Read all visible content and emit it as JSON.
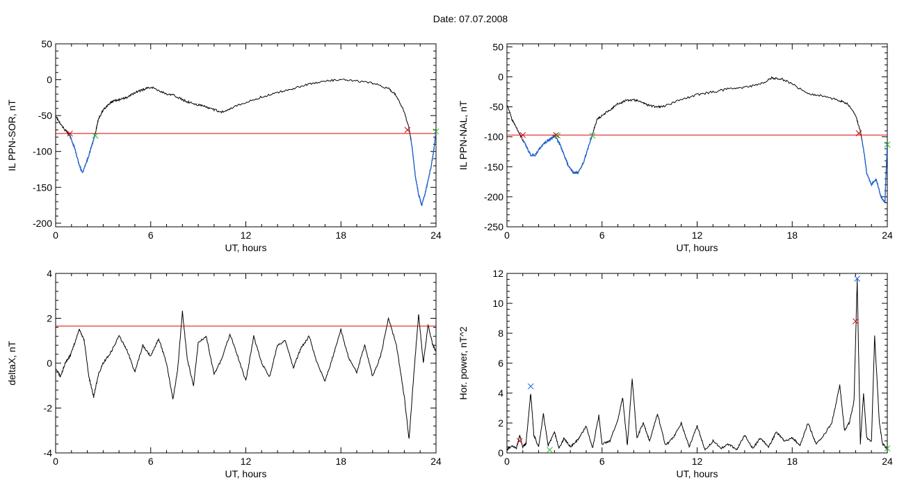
{
  "figure": {
    "title": "Date:  07.07.2008"
  },
  "colors": {
    "axes": "#000000",
    "trace": "#000000",
    "highlight": "#1a5fd0",
    "threshold": "#e00000",
    "marker_red": "#cc0000",
    "marker_green": "#20b020",
    "marker_blue": "#2060e0"
  },
  "chart_data": [
    {
      "id": "p1",
      "type": "line",
      "title": "",
      "xlabel": "UT, hours",
      "ylabel": "IL PPN-SOR, nT",
      "xlim": [
        0,
        24
      ],
      "ylim": [
        -205,
        50
      ],
      "xticks": [
        0,
        6,
        12,
        18,
        24
      ],
      "yticks": [
        -200,
        -150,
        -100,
        -50,
        0,
        50
      ],
      "grid": false,
      "threshold": -75,
      "series": [
        {
          "x": [
            0,
            0.3,
            0.6,
            0.9,
            1.2,
            1.5,
            1.7,
            2.0,
            2.3,
            2.5,
            2.7,
            3.0,
            3.3,
            3.6,
            4.0,
            4.5,
            5.0,
            5.5,
            6.0,
            6.5,
            7.0,
            7.5,
            8.0,
            8.5,
            9.0,
            9.5,
            10.0,
            10.5,
            11.0,
            12.0,
            13.0,
            14.0,
            15.0,
            16.0,
            17.0,
            18.0,
            19.0,
            20.0,
            21.0,
            21.5,
            22.0,
            22.3,
            22.5,
            22.7,
            22.9,
            23.1,
            23.3,
            23.5,
            23.7,
            23.85,
            24.0
          ],
          "y": [
            -50,
            -62,
            -70,
            -78,
            -95,
            -120,
            -130,
            -112,
            -90,
            -75,
            -55,
            -42,
            -35,
            -30,
            -28,
            -25,
            -18,
            -14,
            -10,
            -15,
            -20,
            -22,
            -28,
            -32,
            -35,
            -38,
            -42,
            -45,
            -40,
            -32,
            -24,
            -18,
            -12,
            -6,
            -2,
            0,
            -2,
            -5,
            -12,
            -22,
            -45,
            -68,
            -95,
            -135,
            -160,
            -175,
            -160,
            -140,
            -120,
            -100,
            -72
          ]
        }
      ],
      "highlight_segments": [
        [
          0.9,
          2.5
        ],
        [
          22.4,
          24.0
        ]
      ],
      "markers": [
        {
          "x": 0.9,
          "y": -75,
          "color": "red"
        },
        {
          "x": 2.5,
          "y": -78,
          "color": "green"
        },
        {
          "x": 22.2,
          "y": -70,
          "color": "red"
        },
        {
          "x": 24.0,
          "y": -72,
          "color": "green"
        }
      ]
    },
    {
      "id": "p2",
      "type": "line",
      "title": "",
      "xlabel": "UT, hours",
      "ylabel": "IL PPN-NAL, nT",
      "xlim": [
        0,
        24
      ],
      "ylim": [
        -250,
        55
      ],
      "xticks": [
        0,
        6,
        12,
        18,
        24
      ],
      "yticks": [
        -250,
        -200,
        -150,
        -100,
        -50,
        0,
        50
      ],
      "grid": false,
      "threshold": -97,
      "series": [
        {
          "x": [
            0,
            0.3,
            0.6,
            0.9,
            1.2,
            1.5,
            1.8,
            2.1,
            2.4,
            2.7,
            3.0,
            3.3,
            3.6,
            3.9,
            4.2,
            4.5,
            4.8,
            5.1,
            5.4,
            5.7,
            6.0,
            6.5,
            7.0,
            7.5,
            8.0,
            8.5,
            9.0,
            9.5,
            10.0,
            11.0,
            12.0,
            13.0,
            14.0,
            15.0,
            16.0,
            16.7,
            17.3,
            18.0,
            19.0,
            20.0,
            21.0,
            21.5,
            22.0,
            22.3,
            22.5,
            22.7,
            23.0,
            23.3,
            23.6,
            23.85,
            24.0
          ],
          "y": [
            -45,
            -70,
            -85,
            -100,
            -115,
            -130,
            -130,
            -118,
            -110,
            -105,
            -98,
            -110,
            -130,
            -150,
            -160,
            -160,
            -145,
            -120,
            -95,
            -70,
            -65,
            -55,
            -45,
            -40,
            -38,
            -42,
            -48,
            -50,
            -48,
            -38,
            -30,
            -25,
            -20,
            -18,
            -12,
            -2,
            -3,
            -12,
            -28,
            -32,
            -40,
            -45,
            -65,
            -90,
            -120,
            -160,
            -180,
            -170,
            -200,
            -210,
            -110
          ]
        }
      ],
      "highlight_segments": [
        [
          1.0,
          5.4
        ],
        [
          22.4,
          24.0
        ]
      ],
      "markers": [
        {
          "x": 1.0,
          "y": -97,
          "color": "red"
        },
        {
          "x": 3.1,
          "y": -97,
          "color": "red"
        },
        {
          "x": 3.2,
          "y": -98,
          "color": "green"
        },
        {
          "x": 5.4,
          "y": -98,
          "color": "green"
        },
        {
          "x": 22.2,
          "y": -94,
          "color": "red"
        },
        {
          "x": 24.0,
          "y": -113,
          "color": "green"
        }
      ]
    },
    {
      "id": "p3",
      "type": "line",
      "title": "",
      "xlabel": "UT, hours",
      "ylabel": "deltaX, nT",
      "xlim": [
        0,
        24
      ],
      "ylim": [
        -4,
        4
      ],
      "xticks": [
        0,
        6,
        12,
        18,
        24
      ],
      "yticks": [
        -4,
        -2,
        0,
        2,
        4
      ],
      "grid": false,
      "threshold": 1.65,
      "series": [
        {
          "x": [
            0,
            0.3,
            0.6,
            0.9,
            1.2,
            1.5,
            1.8,
            2.1,
            2.4,
            2.7,
            3.0,
            3.5,
            4.0,
            4.5,
            5.0,
            5.5,
            6.0,
            6.5,
            7.0,
            7.4,
            7.7,
            8.0,
            8.3,
            8.7,
            9.0,
            9.5,
            10.0,
            10.5,
            11.0,
            11.5,
            12.0,
            12.5,
            13.0,
            13.5,
            14.0,
            14.5,
            15.0,
            15.5,
            16.0,
            16.5,
            17.0,
            17.5,
            18.0,
            18.5,
            19.0,
            19.5,
            20.0,
            20.5,
            21.0,
            21.5,
            22.0,
            22.3,
            22.6,
            22.9,
            23.2,
            23.5,
            23.8,
            24.0
          ],
          "y": [
            -0.2,
            -0.6,
            0.0,
            0.3,
            0.9,
            1.5,
            1.0,
            -0.6,
            -1.5,
            -0.5,
            0.0,
            0.5,
            1.2,
            0.6,
            -0.4,
            0.8,
            0.3,
            1.1,
            0.0,
            -1.6,
            -0.3,
            2.3,
            0.2,
            -1.0,
            0.9,
            1.2,
            -0.5,
            0.2,
            1.3,
            0.3,
            -0.8,
            1.2,
            0.0,
            -0.6,
            0.8,
            1.0,
            -0.2,
            0.7,
            1.2,
            0.0,
            -0.8,
            0.3,
            1.5,
            0.2,
            -0.4,
            0.8,
            -0.6,
            0.3,
            2.0,
            0.8,
            -1.5,
            -3.4,
            -0.5,
            2.2,
            0.0,
            1.7,
            0.8,
            0.5
          ]
        }
      ],
      "highlight_segments": [],
      "markers": []
    },
    {
      "id": "p4",
      "type": "line",
      "title": "",
      "xlabel": "UT, hours",
      "ylabel": "Hor. power, nT^2",
      "xlim": [
        0,
        24
      ],
      "ylim": [
        0,
        12
      ],
      "xticks": [
        0,
        6,
        12,
        18,
        24
      ],
      "yticks": [
        0,
        2,
        4,
        6,
        8,
        10,
        12
      ],
      "grid": false,
      "threshold": null,
      "series": [
        {
          "x": [
            0,
            0.3,
            0.6,
            0.8,
            1.0,
            1.2,
            1.5,
            1.7,
            2.0,
            2.3,
            2.6,
            3.0,
            3.3,
            3.6,
            4.0,
            4.5,
            5.0,
            5.4,
            5.8,
            6.0,
            6.5,
            7.0,
            7.3,
            7.6,
            7.9,
            8.2,
            8.6,
            9.0,
            9.5,
            10.0,
            10.5,
            11.0,
            11.5,
            12.0,
            12.5,
            13.0,
            13.5,
            14.0,
            14.5,
            15.0,
            15.5,
            16.0,
            16.5,
            17.0,
            17.5,
            18.0,
            18.5,
            19.0,
            19.5,
            20.0,
            20.5,
            21.0,
            21.3,
            21.6,
            21.9,
            22.1,
            22.3,
            22.5,
            22.7,
            23.0,
            23.2,
            23.5,
            23.7,
            24.0
          ],
          "y": [
            0.2,
            0.5,
            0.3,
            1.2,
            0.4,
            0.6,
            4.0,
            1.2,
            0.4,
            2.6,
            0.5,
            1.4,
            0.3,
            1.0,
            0.4,
            0.9,
            1.8,
            0.3,
            2.5,
            0.6,
            0.8,
            2.2,
            3.7,
            0.5,
            5.0,
            1.0,
            2.0,
            0.8,
            2.6,
            0.5,
            1.0,
            2.0,
            0.4,
            1.8,
            0.2,
            0.8,
            0.3,
            0.6,
            0.2,
            1.2,
            0.3,
            1.0,
            0.4,
            1.4,
            0.8,
            1.0,
            0.5,
            2.0,
            0.6,
            1.2,
            2.0,
            4.5,
            1.5,
            2.0,
            3.5,
            11.6,
            0.6,
            4.0,
            1.0,
            0.8,
            7.8,
            2.0,
            0.6,
            0.3
          ]
        }
      ],
      "highlight_segments": [],
      "markers": [
        {
          "x": 0.8,
          "y": 0.8,
          "color": "red"
        },
        {
          "x": 1.5,
          "y": 4.45,
          "color": "blue"
        },
        {
          "x": 2.7,
          "y": 0.2,
          "color": "green"
        },
        {
          "x": 22.0,
          "y": 8.8,
          "color": "red"
        },
        {
          "x": 22.1,
          "y": 11.65,
          "color": "blue"
        },
        {
          "x": 24.0,
          "y": 0.3,
          "color": "green"
        }
      ]
    }
  ]
}
